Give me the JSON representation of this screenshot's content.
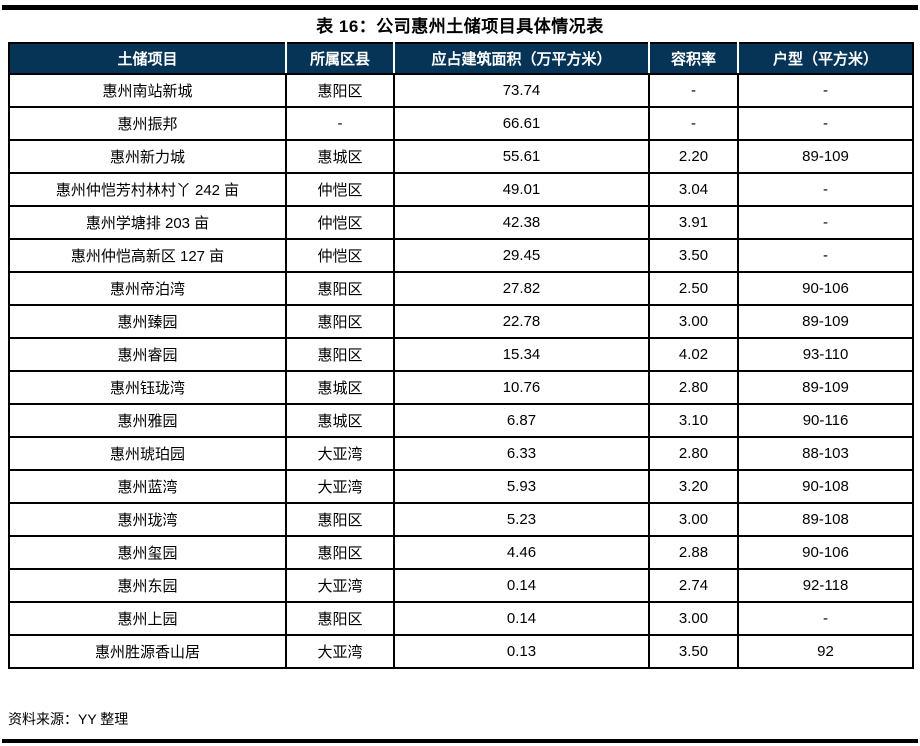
{
  "title": "表 16：公司惠州土储项目具体情况表",
  "table": {
    "headers": [
      "土储项目",
      "所属区县",
      "应占建筑面积（万平方米）",
      "容积率",
      "户型（平方米）"
    ],
    "rows": [
      [
        "惠州南站新城",
        "惠阳区",
        "73.74",
        "-",
        "-"
      ],
      [
        "惠州振邦",
        "-",
        "66.61",
        "-",
        "-"
      ],
      [
        "惠州新力城",
        "惠城区",
        "55.61",
        "2.20",
        "89-109"
      ],
      [
        "惠州仲恺芳村林村丫 242 亩",
        "仲恺区",
        "49.01",
        "3.04",
        "-"
      ],
      [
        "惠州学塘排 203 亩",
        "仲恺区",
        "42.38",
        "3.91",
        "-"
      ],
      [
        "惠州仲恺高新区 127 亩",
        "仲恺区",
        "29.45",
        "3.50",
        "-"
      ],
      [
        "惠州帝泊湾",
        "惠阳区",
        "27.82",
        "2.50",
        "90-106"
      ],
      [
        "惠州臻园",
        "惠阳区",
        "22.78",
        "3.00",
        "89-109"
      ],
      [
        "惠州睿园",
        "惠阳区",
        "15.34",
        "4.02",
        "93-110"
      ],
      [
        "惠州钰珑湾",
        "惠城区",
        "10.76",
        "2.80",
        "89-109"
      ],
      [
        "惠州雅园",
        "惠城区",
        "6.87",
        "3.10",
        "90-116"
      ],
      [
        "惠州琥珀园",
        "大亚湾",
        "6.33",
        "2.80",
        "88-103"
      ],
      [
        "惠州蓝湾",
        "大亚湾",
        "5.93",
        "3.20",
        "90-108"
      ],
      [
        "惠州珑湾",
        "惠阳区",
        "5.23",
        "3.00",
        "89-108"
      ],
      [
        "惠州玺园",
        "惠阳区",
        "4.46",
        "2.88",
        "90-106"
      ],
      [
        "惠州东园",
        "大亚湾",
        "0.14",
        "2.74",
        "92-118"
      ],
      [
        "惠州上园",
        "惠阳区",
        "0.14",
        "3.00",
        "-"
      ],
      [
        "惠州胜源香山居",
        "大亚湾",
        "0.13",
        "3.50",
        "92"
      ]
    ]
  },
  "source": "资料来源：YY 整理",
  "colors": {
    "header_bg": "#053457",
    "header_text": "#ffffff",
    "border": "#000000",
    "rule": "#000000"
  }
}
